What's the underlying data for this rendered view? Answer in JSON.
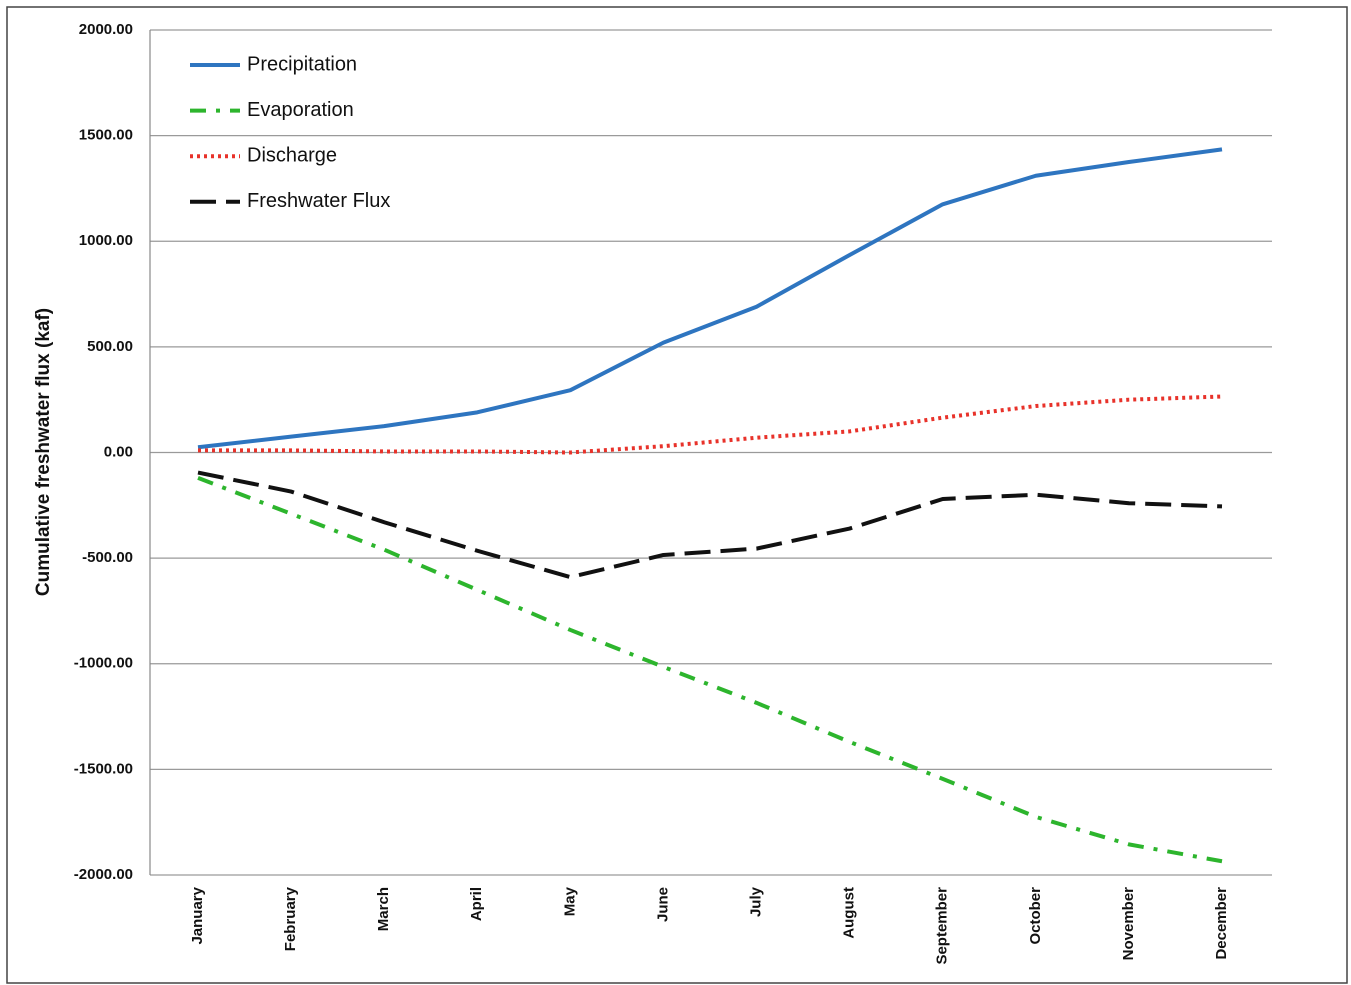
{
  "chart_data": {
    "type": "line",
    "y_label": "Cumulative freshwater flux (kaf)",
    "categories": [
      "January",
      "February",
      "March",
      "April",
      "May",
      "June",
      "July",
      "August",
      "September",
      "October",
      "November",
      "December"
    ],
    "series": [
      {
        "name": "Precipitation",
        "color": "#2e75c0",
        "style": "solid",
        "values": [
          25,
          75,
          125,
          190,
          295,
          520,
          690,
          935,
          1175,
          1310,
          1375,
          1435
        ]
      },
      {
        "name": "Evaporation",
        "color": "#2db52d",
        "style": "dashdot",
        "values": [
          -120,
          -290,
          -460,
          -650,
          -840,
          -1015,
          -1185,
          -1370,
          -1545,
          -1725,
          -1855,
          -1935
        ]
      },
      {
        "name": "Discharge",
        "color": "#e8322a",
        "style": "dotted",
        "values": [
          10,
          10,
          5,
          5,
          0,
          30,
          70,
          100,
          165,
          220,
          250,
          265
        ]
      },
      {
        "name": "Freshwater Flux",
        "color": "#111111",
        "style": "dashed",
        "values": [
          -95,
          -185,
          -330,
          -465,
          -590,
          -485,
          -455,
          -360,
          -220,
          -200,
          -240,
          -255
        ]
      }
    ],
    "ylim": [
      -2000,
      2000
    ],
    "yticks": [
      {
        "value": -2000,
        "label": "-2000.00"
      },
      {
        "value": -1500,
        "label": "-1500.00"
      },
      {
        "value": -1000,
        "label": "-1000.00"
      },
      {
        "value": -500,
        "label": "-500.00"
      },
      {
        "value": 0,
        "label": "0.00"
      },
      {
        "value": 500,
        "label": "500.00"
      },
      {
        "value": 1000,
        "label": "1000.00"
      },
      {
        "value": 1500,
        "label": "1500.00"
      },
      {
        "value": 2000,
        "label": "2000.00"
      }
    ],
    "grid": true,
    "legend": "top-left"
  }
}
